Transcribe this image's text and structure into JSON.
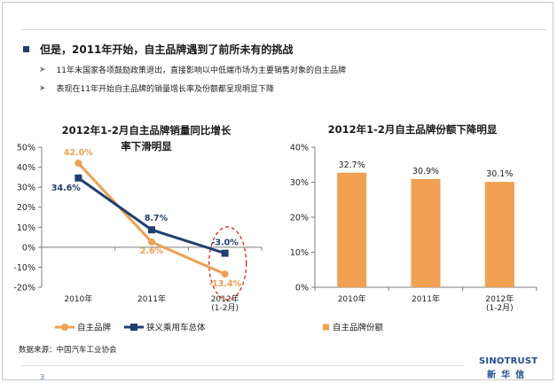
{
  "header": {
    "main_point": "但是，2011年开始，自主品牌遇到了前所未有的挑战",
    "sub_points": [
      "11年末国家各项鼓励政策退出，直接影响以中低端市场为主要销售对象的自主品牌",
      "表现在11年开始自主品牌的销量增长率及份额都呈现明显下降"
    ]
  },
  "chart_data": [
    {
      "type": "line",
      "title": "2012年1-2月自主品牌销量同比增长率下滑明显",
      "title_lines": [
        "2012年1-2月自主品牌销量同比增长",
        "率下滑明显"
      ],
      "categories": [
        "2010年",
        "2011年",
        "2012年\n(1-2月)"
      ],
      "series": [
        {
          "name": "自主品牌",
          "values": [
            42.0,
            2.6,
            -13.4
          ],
          "labels": [
            "42.0%",
            "2.6%",
            "-13.4%"
          ],
          "color": "#f0a050"
        },
        {
          "name": "狭义乘用车总体",
          "values": [
            34.6,
            8.7,
            -3.0
          ],
          "labels": [
            "34.6%",
            "8.7%",
            "-3.0%"
          ],
          "color": "#1f3f6e"
        }
      ],
      "ylim": [
        -20,
        50
      ],
      "yticks": [
        -20,
        -10,
        0,
        10,
        20,
        30,
        40,
        50
      ],
      "ytick_labels": [
        "-20%",
        "-10%",
        "0%",
        "10%",
        "20%",
        "30%",
        "40%",
        "50%"
      ],
      "legend": "bottom",
      "highlight": "dashed red ellipse around 2012 (1-2月) points",
      "highlight_color": "#d9281e"
    },
    {
      "type": "bar",
      "title": "2012年1-2月自主品牌份额下降明显",
      "categories": [
        "2010年",
        "2011年",
        "2012年\n(1-2月)"
      ],
      "series": [
        {
          "name": "自主品牌份额",
          "values": [
            32.7,
            30.9,
            30.1
          ],
          "labels": [
            "32.7%",
            "30.9%",
            "30.1%"
          ],
          "color": "#f0a050"
        }
      ],
      "ylim": [
        0,
        40
      ],
      "yticks": [
        0,
        10,
        20,
        30,
        40
      ],
      "ytick_labels": [
        "0%",
        "10%",
        "20%",
        "30%",
        "40%"
      ],
      "legend": "bottom"
    }
  ],
  "footer": {
    "source": "数据来源：中国汽车工业协会",
    "page_number": "3",
    "logo_en": "SINOTRUST",
    "logo_cn": "新华信"
  }
}
